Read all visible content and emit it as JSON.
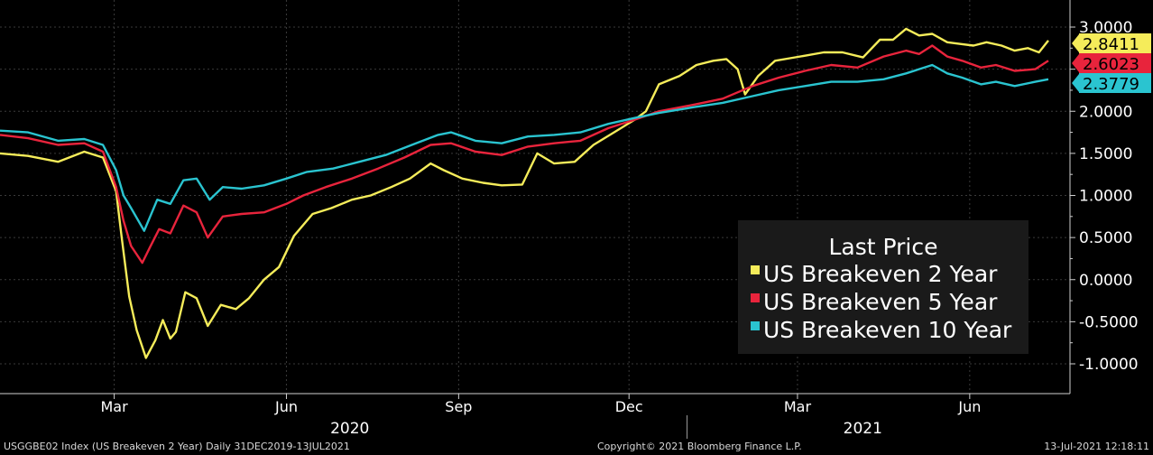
{
  "footer": {
    "left": "USGGBE02 Index (US Breakeven 2 Year)  Daily 31DEC2019-13JUL2021",
    "center": "Copyright© 2021 Bloomberg Finance L.P.",
    "right": "13-Jul-2021 12:18:11"
  },
  "chart_data": {
    "type": "line",
    "title": "",
    "xlabel": "",
    "ylabel": "",
    "ylim": [
      -1.35,
      3.25
    ],
    "yticks": [
      "3.0000",
      "2.5000",
      "2.0000",
      "1.5000",
      "1.0000",
      "0.5000",
      "0.0000",
      "-0.5000",
      "-1.0000"
    ],
    "ytick_values": [
      3.0,
      2.5,
      2.0,
      1.5,
      1.0,
      0.5,
      0.0,
      -0.5,
      -1.0
    ],
    "xlim": [
      "2019-12-31",
      "2021-07-13"
    ],
    "xticks": [
      {
        "label": "Mar",
        "date": "2020-03-01"
      },
      {
        "label": "Jun",
        "date": "2020-06-01"
      },
      {
        "label": "Sep",
        "date": "2020-09-01"
      },
      {
        "label": "Dec",
        "date": "2020-12-01"
      },
      {
        "label": "Mar",
        "date": "2021-03-01"
      },
      {
        "label": "Jun",
        "date": "2021-06-01"
      }
    ],
    "year_labels": [
      {
        "label": "2020",
        "date": "2020-07-01"
      },
      {
        "label": "2021",
        "date": "2021-04-01"
      }
    ],
    "year_divider": "2021-01-01",
    "grid": true,
    "legend": {
      "title": "Last Price",
      "position": "bottom-right"
    },
    "series": [
      {
        "name": "US Breakeven 2 Year",
        "color": "#f5ec5a",
        "last_label": "2.8411",
        "points": [
          [
            "2019-12-31",
            1.5
          ],
          [
            "2020-01-15",
            1.47
          ],
          [
            "2020-01-31",
            1.4
          ],
          [
            "2020-02-14",
            1.52
          ],
          [
            "2020-02-24",
            1.45
          ],
          [
            "2020-03-02",
            1.05
          ],
          [
            "2020-03-05",
            0.5
          ],
          [
            "2020-03-09",
            -0.2
          ],
          [
            "2020-03-13",
            -0.6
          ],
          [
            "2020-03-18",
            -0.93
          ],
          [
            "2020-03-23",
            -0.72
          ],
          [
            "2020-03-27",
            -0.48
          ],
          [
            "2020-03-31",
            -0.7
          ],
          [
            "2020-04-03",
            -0.62
          ],
          [
            "2020-04-08",
            -0.15
          ],
          [
            "2020-04-14",
            -0.22
          ],
          [
            "2020-04-20",
            -0.55
          ],
          [
            "2020-04-27",
            -0.3
          ],
          [
            "2020-05-05",
            -0.35
          ],
          [
            "2020-05-12",
            -0.22
          ],
          [
            "2020-05-20",
            0.0
          ],
          [
            "2020-05-28",
            0.15
          ],
          [
            "2020-06-05",
            0.52
          ],
          [
            "2020-06-15",
            0.78
          ],
          [
            "2020-06-25",
            0.85
          ],
          [
            "2020-07-06",
            0.95
          ],
          [
            "2020-07-16",
            1.0
          ],
          [
            "2020-07-27",
            1.1
          ],
          [
            "2020-08-06",
            1.2
          ],
          [
            "2020-08-17",
            1.38
          ],
          [
            "2020-08-24",
            1.3
          ],
          [
            "2020-09-03",
            1.2
          ],
          [
            "2020-09-14",
            1.15
          ],
          [
            "2020-09-24",
            1.12
          ],
          [
            "2020-10-05",
            1.13
          ],
          [
            "2020-10-13",
            1.5
          ],
          [
            "2020-10-22",
            1.38
          ],
          [
            "2020-11-02",
            1.4
          ],
          [
            "2020-11-12",
            1.6
          ],
          [
            "2020-11-23",
            1.75
          ],
          [
            "2020-12-04",
            1.9
          ],
          [
            "2020-12-10",
            2.0
          ],
          [
            "2020-12-17",
            2.32
          ],
          [
            "2020-12-28",
            2.42
          ],
          [
            "2021-01-06",
            2.55
          ],
          [
            "2021-01-15",
            2.6
          ],
          [
            "2021-01-22",
            2.62
          ],
          [
            "2021-01-28",
            2.5
          ],
          [
            "2021-02-01",
            2.2
          ],
          [
            "2021-02-08",
            2.42
          ],
          [
            "2021-02-17",
            2.6
          ],
          [
            "2021-02-25",
            2.63
          ],
          [
            "2021-03-05",
            2.66
          ],
          [
            "2021-03-15",
            2.7
          ],
          [
            "2021-03-25",
            2.7
          ],
          [
            "2021-04-05",
            2.64
          ],
          [
            "2021-04-14",
            2.85
          ],
          [
            "2021-04-21",
            2.85
          ],
          [
            "2021-04-28",
            2.98
          ],
          [
            "2021-05-05",
            2.9
          ],
          [
            "2021-05-12",
            2.92
          ],
          [
            "2021-05-20",
            2.82
          ],
          [
            "2021-05-27",
            2.8
          ],
          [
            "2021-06-03",
            2.78
          ],
          [
            "2021-06-10",
            2.82
          ],
          [
            "2021-06-18",
            2.78
          ],
          [
            "2021-06-25",
            2.72
          ],
          [
            "2021-07-02",
            2.75
          ],
          [
            "2021-07-08",
            2.7
          ],
          [
            "2021-07-13",
            2.84
          ]
        ]
      },
      {
        "name": "US Breakeven 5 Year",
        "color": "#e8243c",
        "last_label": "2.6023",
        "points": [
          [
            "2019-12-31",
            1.72
          ],
          [
            "2020-01-15",
            1.68
          ],
          [
            "2020-01-31",
            1.6
          ],
          [
            "2020-02-14",
            1.62
          ],
          [
            "2020-02-24",
            1.52
          ],
          [
            "2020-03-02",
            1.1
          ],
          [
            "2020-03-06",
            0.7
          ],
          [
            "2020-03-10",
            0.4
          ],
          [
            "2020-03-16",
            0.2
          ],
          [
            "2020-03-20",
            0.38
          ],
          [
            "2020-03-25",
            0.6
          ],
          [
            "2020-03-31",
            0.55
          ],
          [
            "2020-04-07",
            0.88
          ],
          [
            "2020-04-14",
            0.8
          ],
          [
            "2020-04-20",
            0.5
          ],
          [
            "2020-04-28",
            0.75
          ],
          [
            "2020-05-08",
            0.78
          ],
          [
            "2020-05-20",
            0.8
          ],
          [
            "2020-06-01",
            0.9
          ],
          [
            "2020-06-10",
            1.0
          ],
          [
            "2020-06-22",
            1.1
          ],
          [
            "2020-07-06",
            1.2
          ],
          [
            "2020-07-20",
            1.32
          ],
          [
            "2020-08-03",
            1.45
          ],
          [
            "2020-08-17",
            1.6
          ],
          [
            "2020-08-28",
            1.62
          ],
          [
            "2020-09-10",
            1.52
          ],
          [
            "2020-09-24",
            1.48
          ],
          [
            "2020-10-08",
            1.58
          ],
          [
            "2020-10-22",
            1.62
          ],
          [
            "2020-11-05",
            1.65
          ],
          [
            "2020-11-20",
            1.8
          ],
          [
            "2020-12-04",
            1.9
          ],
          [
            "2020-12-17",
            2.0
          ],
          [
            "2021-01-05",
            2.08
          ],
          [
            "2021-01-20",
            2.15
          ],
          [
            "2021-02-05",
            2.3
          ],
          [
            "2021-02-19",
            2.4
          ],
          [
            "2021-03-05",
            2.48
          ],
          [
            "2021-03-19",
            2.55
          ],
          [
            "2021-04-02",
            2.52
          ],
          [
            "2021-04-16",
            2.65
          ],
          [
            "2021-04-28",
            2.72
          ],
          [
            "2021-05-05",
            2.68
          ],
          [
            "2021-05-12",
            2.78
          ],
          [
            "2021-05-20",
            2.65
          ],
          [
            "2021-05-28",
            2.6
          ],
          [
            "2021-06-07",
            2.52
          ],
          [
            "2021-06-15",
            2.55
          ],
          [
            "2021-06-25",
            2.48
          ],
          [
            "2021-07-06",
            2.5
          ],
          [
            "2021-07-13",
            2.6
          ]
        ]
      },
      {
        "name": "US Breakeven 10 Year",
        "color": "#2ac4d0",
        "last_label": "2.3779",
        "points": [
          [
            "2019-12-31",
            1.77
          ],
          [
            "2020-01-15",
            1.75
          ],
          [
            "2020-01-31",
            1.65
          ],
          [
            "2020-02-14",
            1.67
          ],
          [
            "2020-02-24",
            1.6
          ],
          [
            "2020-03-02",
            1.3
          ],
          [
            "2020-03-06",
            1.0
          ],
          [
            "2020-03-10",
            0.85
          ],
          [
            "2020-03-17",
            0.58
          ],
          [
            "2020-03-24",
            0.95
          ],
          [
            "2020-03-31",
            0.9
          ],
          [
            "2020-04-07",
            1.18
          ],
          [
            "2020-04-14",
            1.2
          ],
          [
            "2020-04-21",
            0.95
          ],
          [
            "2020-04-28",
            1.1
          ],
          [
            "2020-05-08",
            1.08
          ],
          [
            "2020-05-20",
            1.12
          ],
          [
            "2020-06-01",
            1.2
          ],
          [
            "2020-06-12",
            1.28
          ],
          [
            "2020-06-26",
            1.32
          ],
          [
            "2020-07-10",
            1.4
          ],
          [
            "2020-07-24",
            1.48
          ],
          [
            "2020-08-07",
            1.6
          ],
          [
            "2020-08-21",
            1.72
          ],
          [
            "2020-08-28",
            1.75
          ],
          [
            "2020-09-10",
            1.65
          ],
          [
            "2020-09-24",
            1.62
          ],
          [
            "2020-10-08",
            1.7
          ],
          [
            "2020-10-22",
            1.72
          ],
          [
            "2020-11-05",
            1.75
          ],
          [
            "2020-11-20",
            1.85
          ],
          [
            "2020-12-04",
            1.92
          ],
          [
            "2020-12-17",
            1.98
          ],
          [
            "2021-01-05",
            2.05
          ],
          [
            "2021-01-20",
            2.1
          ],
          [
            "2021-02-05",
            2.18
          ],
          [
            "2021-02-19",
            2.25
          ],
          [
            "2021-03-05",
            2.3
          ],
          [
            "2021-03-19",
            2.35
          ],
          [
            "2021-04-02",
            2.35
          ],
          [
            "2021-04-16",
            2.38
          ],
          [
            "2021-04-28",
            2.45
          ],
          [
            "2021-05-12",
            2.55
          ],
          [
            "2021-05-20",
            2.45
          ],
          [
            "2021-05-28",
            2.4
          ],
          [
            "2021-06-07",
            2.32
          ],
          [
            "2021-06-15",
            2.35
          ],
          [
            "2021-06-25",
            2.3
          ],
          [
            "2021-07-06",
            2.35
          ],
          [
            "2021-07-13",
            2.38
          ]
        ]
      }
    ]
  }
}
